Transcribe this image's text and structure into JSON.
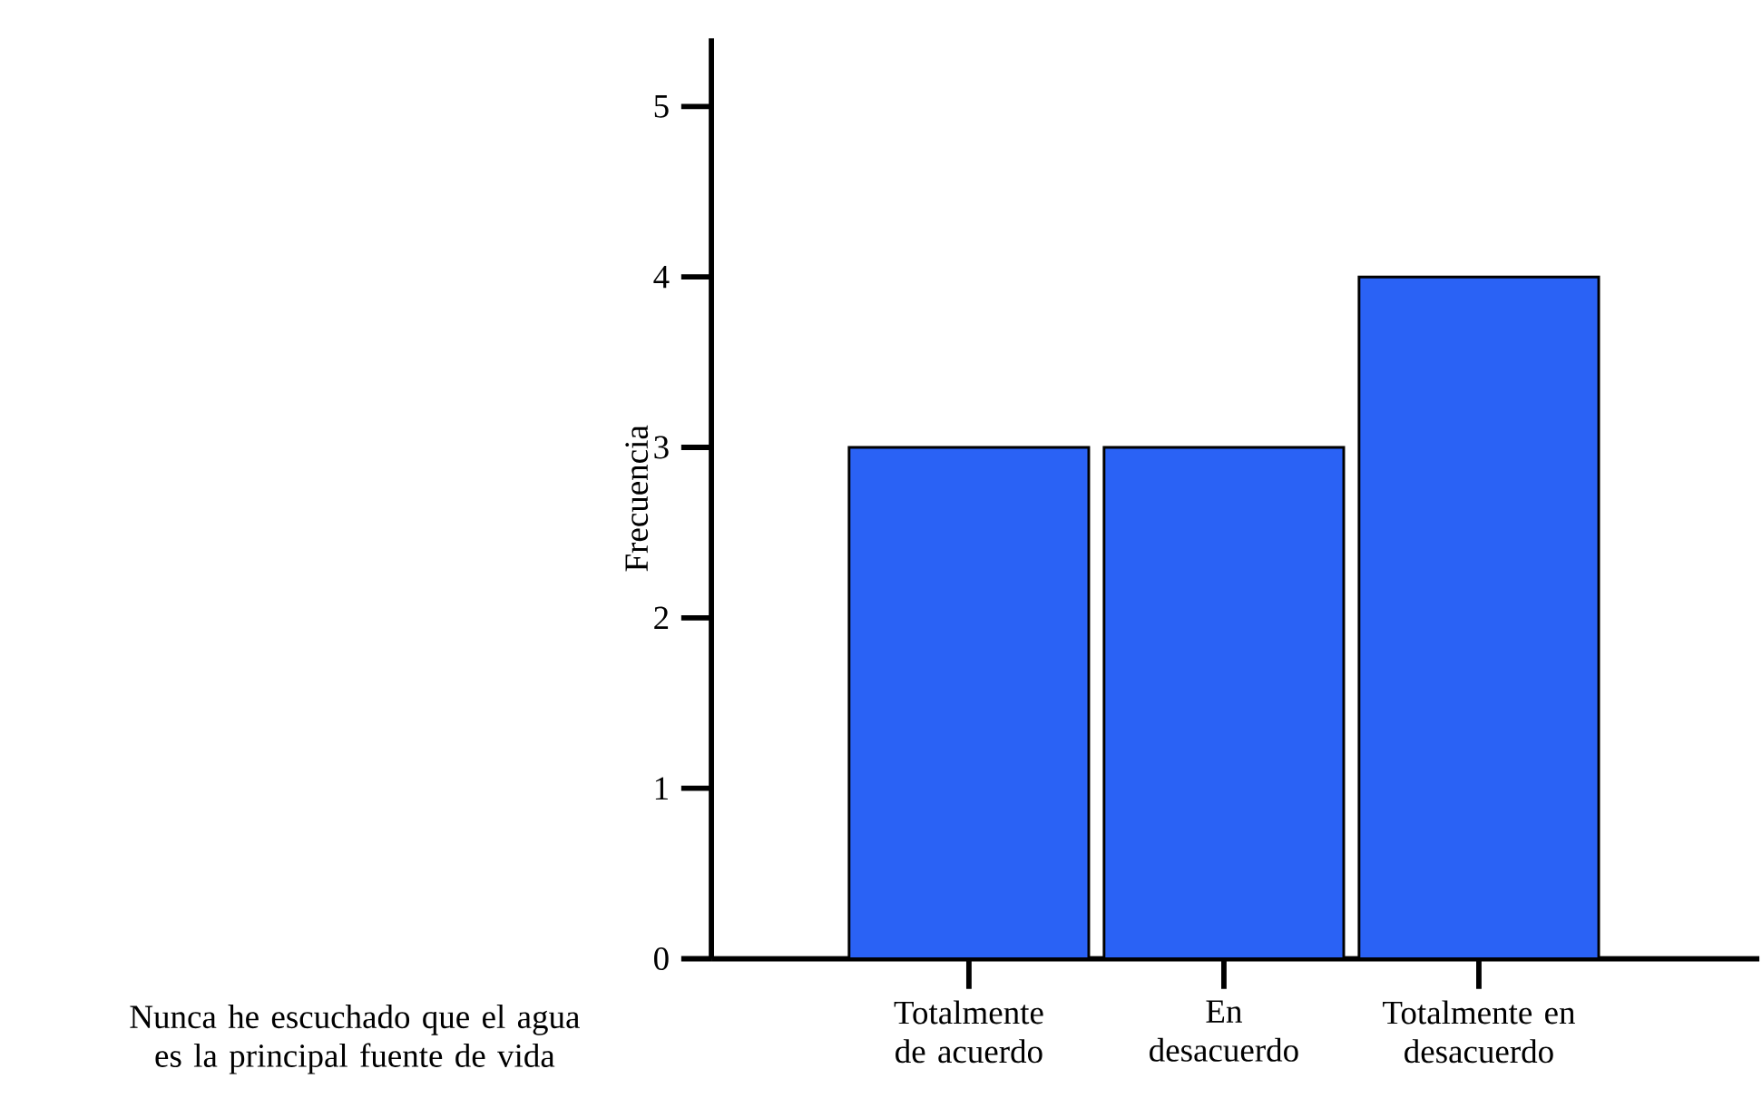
{
  "chart_data": {
    "type": "bar",
    "ylabel": "Frecuencia",
    "xlabel": "Nunca he escuchado que el agua es la principal fuente de vida",
    "categories": [
      "Totalmente de acuerdo",
      "En desacuerdo",
      "Totalmente en desacuerdo"
    ],
    "values": [
      3,
      3,
      4
    ],
    "color": "#2a62f5",
    "ylim": [
      0,
      5.4
    ],
    "yticks": [
      0,
      1,
      2,
      3,
      4,
      5
    ],
    "grid": false
  }
}
